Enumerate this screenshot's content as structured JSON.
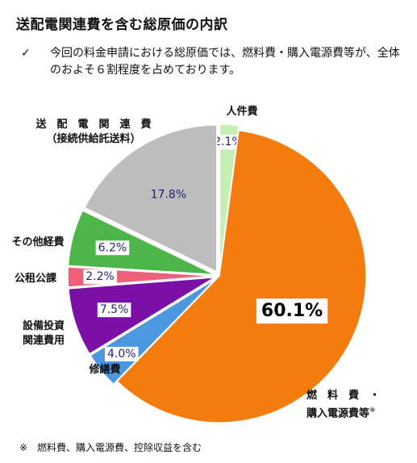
{
  "title": "送配電関連費を含む総原価の内訳",
  "note": {
    "bullet": "✓",
    "text": "今回の料金申請における総原価では、燃料費・購入電源費等が、全体のおよそ６割程度を占めております。"
  },
  "footnote": "※　燃料費、購入電源費、控除収益を含む",
  "chart_data": {
    "type": "pie",
    "title": "送配電関連費を含む総原価の内訳",
    "start": "12 o'clock, clockwise",
    "slices": [
      {
        "label": "人件費",
        "value": 2.1,
        "value_label": "2.1%",
        "color": "#c6efb4"
      },
      {
        "label": "燃料費・購入電源費等※",
        "value": 60.1,
        "value_label": "60.1%",
        "color": "#f47b0d"
      },
      {
        "label": "修繕費",
        "value": 4.0,
        "value_label": "4.0%",
        "color": "#4b97e0"
      },
      {
        "label": "設備投資関連費用",
        "value": 7.5,
        "value_label": "7.5%",
        "color": "#7b0fa6"
      },
      {
        "label": "公租公課",
        "value": 2.2,
        "value_label": "2.2%",
        "color": "#f0607a"
      },
      {
        "label": "その他経費",
        "value": 6.2,
        "value_label": "6.2%",
        "color": "#4db64b"
      },
      {
        "label": "送配電関連費（接続供給託送料）",
        "value": 17.8,
        "value_label": "17.8%",
        "color": "#bdbdbd"
      }
    ],
    "outer_labels": {
      "personnel": "人件費",
      "fuel_line1": "燃　料　費　・",
      "fuel_line2": "購入電源費等",
      "fuel_mark": "※",
      "repair": "修繕費",
      "capex_line1": "設備投資",
      "capex_line2": "関連費用",
      "tax": "公租公課",
      "other": "その他経費",
      "transmission_line1": "送　配　電　関　連　費",
      "transmission_line2": "（接続供給託送料）"
    }
  }
}
